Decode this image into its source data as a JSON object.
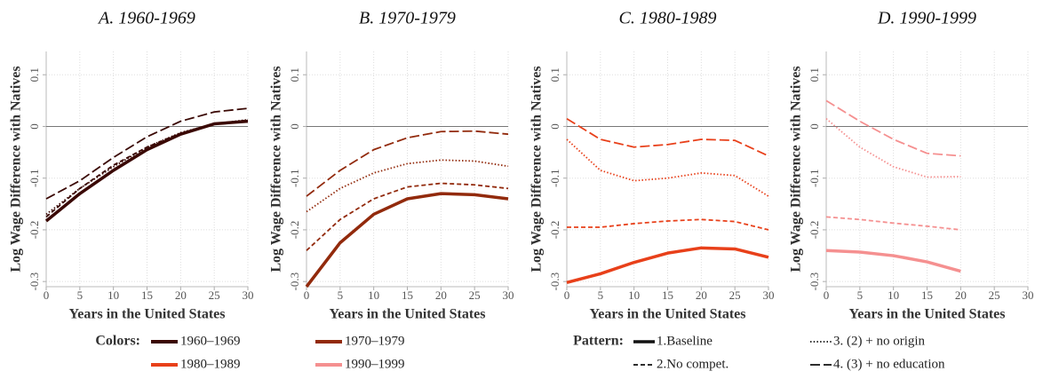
{
  "chart_data": [
    {
      "type": "line",
      "title": "A. 1960-1969",
      "x_label": "Years in the United States",
      "y_label": "Log Wage Difference with Natives",
      "x": [
        0,
        5,
        10,
        15,
        20,
        25,
        30
      ],
      "xlim": [
        0,
        30
      ],
      "xticks": [
        0,
        5,
        10,
        15,
        20,
        25,
        30
      ],
      "ylim": [
        -0.31,
        0.145
      ],
      "yticks": [
        -0.3,
        -0.2,
        -0.1,
        0,
        0.1
      ],
      "grid": true,
      "reference_line": 0,
      "series": [
        {
          "color": "#3a0804",
          "dash": "solid",
          "values": [
            -0.183,
            -0.13,
            -0.085,
            -0.045,
            -0.015,
            0.005,
            0.01
          ]
        },
        {
          "color": "#3a0804",
          "dash": "dashed",
          "values": [
            -0.175,
            -0.12,
            -0.075,
            -0.04,
            -0.013,
            0.005,
            0.012
          ]
        },
        {
          "color": "#3a0804",
          "dash": "dotted",
          "values": [
            -0.17,
            -0.12,
            -0.078,
            -0.04,
            -0.012,
            0.005,
            0.013
          ]
        },
        {
          "color": "#3a0804",
          "dash": "longdash",
          "values": [
            -0.14,
            -0.105,
            -0.06,
            -0.02,
            0.01,
            0.028,
            0.035
          ]
        }
      ]
    },
    {
      "type": "line",
      "title": "B. 1970-1979",
      "x_label": "Years in the United States",
      "y_label": "Log Wage Difference with Natives",
      "x": [
        0,
        5,
        10,
        15,
        20,
        25,
        30
      ],
      "xlim": [
        0,
        30
      ],
      "xticks": [
        0,
        5,
        10,
        15,
        20,
        25,
        30
      ],
      "ylim": [
        -0.31,
        0.145
      ],
      "yticks": [
        -0.3,
        -0.2,
        -0.1,
        0,
        0.1
      ],
      "grid": true,
      "reference_line": 0,
      "series": [
        {
          "color": "#922a0c",
          "dash": "solid",
          "values": [
            -0.31,
            -0.225,
            -0.17,
            -0.14,
            -0.13,
            -0.132,
            -0.14
          ]
        },
        {
          "color": "#922a0c",
          "dash": "dashed",
          "values": [
            -0.24,
            -0.18,
            -0.14,
            -0.117,
            -0.11,
            -0.113,
            -0.12
          ]
        },
        {
          "color": "#922a0c",
          "dash": "dotted",
          "values": [
            -0.165,
            -0.12,
            -0.09,
            -0.072,
            -0.065,
            -0.067,
            -0.077
          ]
        },
        {
          "color": "#922a0c",
          "dash": "longdash",
          "values": [
            -0.135,
            -0.085,
            -0.045,
            -0.022,
            -0.01,
            -0.009,
            -0.015
          ]
        }
      ]
    },
    {
      "type": "line",
      "title": "C. 1980-1989",
      "x_label": "Years in the United States",
      "y_label": "Log Wage Difference with Natives",
      "x": [
        0,
        5,
        10,
        15,
        20,
        25,
        30
      ],
      "xlim": [
        0,
        30
      ],
      "xticks": [
        0,
        5,
        10,
        15,
        20,
        25,
        30
      ],
      "ylim": [
        -0.31,
        0.145
      ],
      "yticks": [
        -0.3,
        -0.2,
        -0.1,
        0,
        0.1
      ],
      "grid": true,
      "reference_line": 0,
      "series": [
        {
          "color": "#e8401a",
          "dash": "solid",
          "values": [
            -0.302,
            -0.285,
            -0.263,
            -0.245,
            -0.235,
            -0.237,
            -0.253
          ]
        },
        {
          "color": "#e8401a",
          "dash": "dashed",
          "values": [
            -0.195,
            -0.195,
            -0.188,
            -0.183,
            -0.18,
            -0.184,
            -0.2
          ]
        },
        {
          "color": "#e8401a",
          "dash": "dotted",
          "values": [
            -0.025,
            -0.085,
            -0.105,
            -0.1,
            -0.09,
            -0.095,
            -0.135
          ]
        },
        {
          "color": "#e8401a",
          "dash": "longdash",
          "values": [
            0.015,
            -0.025,
            -0.04,
            -0.035,
            -0.025,
            -0.027,
            -0.057
          ]
        }
      ]
    },
    {
      "type": "line",
      "title": "D. 1990-1999",
      "x_label": "Years in the United States",
      "y_label": "Log Wage Difference with Natives",
      "x": [
        0,
        5,
        10,
        15,
        20,
        25,
        30
      ],
      "xlim": [
        0,
        30
      ],
      "xticks": [
        0,
        5,
        10,
        15,
        20,
        25,
        30
      ],
      "ylim": [
        -0.31,
        0.145
      ],
      "yticks": [
        -0.3,
        -0.2,
        -0.1,
        0,
        0.1
      ],
      "grid": true,
      "reference_line": 0,
      "series": [
        {
          "color": "#f59090",
          "dash": "solid",
          "values": [
            -0.24,
            -0.243,
            -0.25,
            -0.262,
            -0.28,
            null,
            null
          ]
        },
        {
          "color": "#f59090",
          "dash": "dashed",
          "values": [
            -0.175,
            -0.18,
            -0.187,
            -0.193,
            -0.2,
            null,
            null
          ]
        },
        {
          "color": "#f59090",
          "dash": "dotted",
          "values": [
            0.015,
            -0.04,
            -0.078,
            -0.098,
            -0.097,
            null,
            null
          ]
        },
        {
          "color": "#f59090",
          "dash": "longdash",
          "values": [
            0.05,
            0.01,
            -0.025,
            -0.052,
            -0.057,
            null,
            null
          ]
        }
      ]
    }
  ],
  "legend": {
    "colors_title": "Colors:",
    "colors": [
      {
        "label": "1960–1969",
        "color": "#3a0804"
      },
      {
        "label": "1970–1979",
        "color": "#922a0c"
      },
      {
        "label": "1980–1989",
        "color": "#e8401a"
      },
      {
        "label": "1990–1999",
        "color": "#f59090"
      }
    ],
    "patterns_title": "Pattern:",
    "patterns": [
      {
        "label": "1.Baseline",
        "dash": "solid"
      },
      {
        "label": "2.No compet.",
        "dash": "dashed"
      },
      {
        "label": "3. (2) + no origin",
        "dash": "dotted"
      },
      {
        "label": "4. (3) + no education",
        "dash": "longdash"
      }
    ]
  }
}
